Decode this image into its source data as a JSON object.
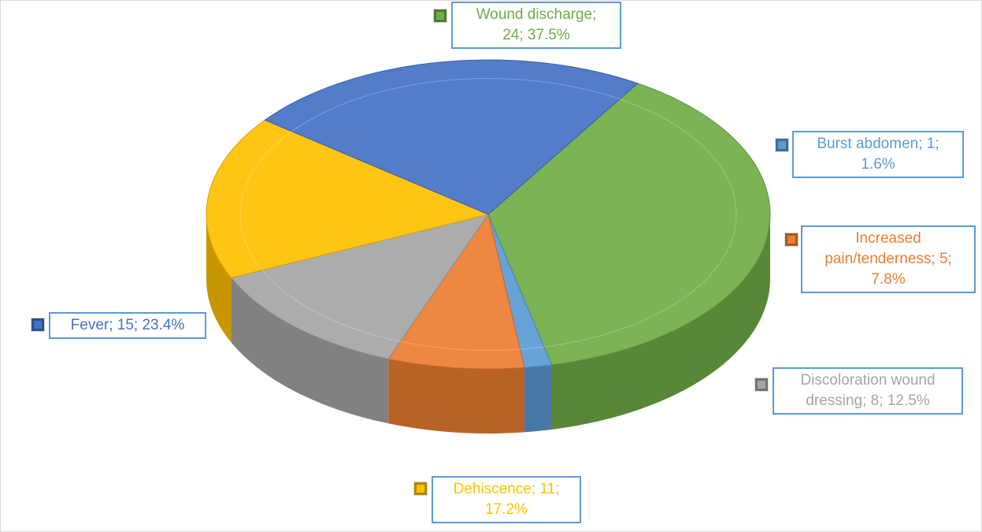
{
  "chart_data": {
    "type": "pie",
    "title": "",
    "slices": [
      {
        "label": "Wound discharge",
        "value": 24,
        "percent": "37.5%",
        "color": "#70ad47",
        "line1": "Wound discharge;",
        "line2": "24; 37.5%"
      },
      {
        "label": "Burst abdomen",
        "value": 1,
        "percent": "1.6%",
        "color": "#5b9bd5",
        "line1": "Burst abdomen; 1;",
        "line2": "1.6%"
      },
      {
        "label": "Increased pain/tenderness",
        "value": 5,
        "percent": "7.8%",
        "color": "#ed7d31",
        "line1": "Increased",
        "line2": "pain/tenderness; 5;",
        "line3": "7.8%"
      },
      {
        "label": "Discoloration wound dressing",
        "value": 8,
        "percent": "12.5%",
        "color": "#a5a5a5",
        "line1": "Discoloration wound",
        "line2": "dressing; 8; 12.5%"
      },
      {
        "label": "Dehiscence",
        "value": 11,
        "percent": "17.2%",
        "color": "#ffc000",
        "line1": "Dehiscence; 11;",
        "line2": "17.2%"
      },
      {
        "label": "Fever",
        "value": 15,
        "percent": "23.4%",
        "color": "#4472c4",
        "line1": "Fever; 15; 23.4%"
      }
    ],
    "label_border_color": "#5b9bd5"
  }
}
